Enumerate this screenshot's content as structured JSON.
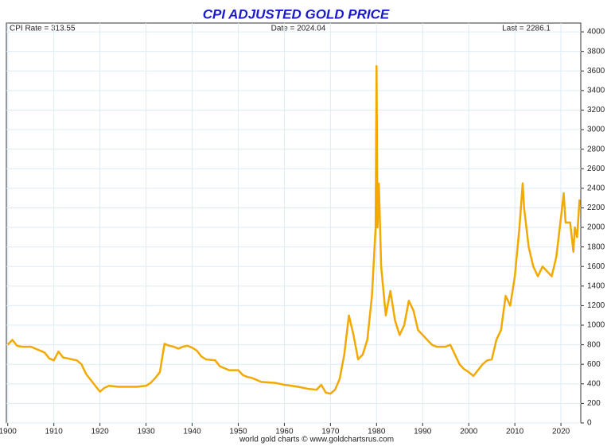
{
  "chart_data": {
    "type": "line",
    "title": "CPI ADJUSTED GOLD PRICE",
    "annotations": [
      "CPI Rate = 313.55",
      "Date = 2024.04",
      "Last = 2286.1"
    ],
    "footer": "world gold charts © www.goldchartsrus.com",
    "grid": true,
    "xlim": [
      1899.7,
      2024.3
    ],
    "xticks": [
      1900,
      1910,
      1920,
      1930,
      1940,
      1950,
      1960,
      1970,
      1980,
      1990,
      2000,
      2010,
      2020
    ],
    "ylim": [
      0,
      4090
    ],
    "yticks": [
      0,
      200,
      400,
      600,
      800,
      1000,
      1200,
      1400,
      1600,
      1800,
      2000,
      2200,
      2400,
      2600,
      2800,
      3000,
      3200,
      3400,
      3600,
      3800,
      4000
    ],
    "series": [
      {
        "name": "CPI adjusted gold price",
        "color": "#f2a900",
        "x": [
          1900,
          1901,
          1902,
          1903,
          1905,
          1907,
          1908,
          1909,
          1910,
          1911,
          1912,
          1913,
          1915,
          1916,
          1917,
          1918,
          1919,
          1920,
          1921,
          1922,
          1924,
          1926,
          1928,
          1930,
          1931,
          1932,
          1933,
          1934,
          1935,
          1936,
          1937,
          1938,
          1939,
          1940,
          1941,
          1942,
          1943,
          1945,
          1946,
          1947,
          1948,
          1950,
          1951,
          1952,
          1953,
          1955,
          1958,
          1960,
          1963,
          1965,
          1967,
          1968,
          1969,
          1970,
          1971,
          1972,
          1973,
          1974,
          1975,
          1976,
          1977,
          1978,
          1979,
          1979.8,
          1980,
          1980.2,
          1980.5,
          1981,
          1982,
          1983,
          1984,
          1985,
          1986,
          1987,
          1988,
          1989,
          1990,
          1991,
          1992,
          1993,
          1995,
          1996,
          1997,
          1998,
          1999,
          2000,
          2001,
          2002,
          2003,
          2004,
          2005,
          2006,
          2007,
          2008,
          2009,
          2010,
          2011,
          2011.7,
          2012,
          2013,
          2014,
          2015,
          2016,
          2017,
          2018,
          2019,
          2020,
          2020.6,
          2021,
          2022,
          2022.7,
          2023,
          2023.5,
          2024.04
        ],
        "values": [
          800,
          850,
          790,
          780,
          780,
          740,
          720,
          660,
          640,
          730,
          670,
          660,
          640,
          600,
          500,
          440,
          380,
          320,
          360,
          380,
          370,
          370,
          370,
          380,
          410,
          460,
          520,
          810,
          790,
          780,
          760,
          780,
          790,
          770,
          740,
          680,
          650,
          640,
          580,
          560,
          540,
          540,
          490,
          470,
          460,
          420,
          410,
          390,
          370,
          350,
          340,
          390,
          310,
          300,
          340,
          450,
          700,
          1100,
          900,
          650,
          700,
          850,
          1300,
          2000,
          3650,
          2000,
          2450,
          1600,
          1100,
          1350,
          1050,
          900,
          1000,
          1250,
          1150,
          950,
          900,
          850,
          800,
          780,
          780,
          800,
          700,
          600,
          550,
          520,
          480,
          540,
          600,
          640,
          650,
          850,
          950,
          1300,
          1200,
          1500,
          2000,
          2450,
          2200,
          1800,
          1600,
          1500,
          1600,
          1550,
          1500,
          1700,
          2100,
          2350,
          2050,
          2050,
          1750,
          2000,
          1900,
          2286.1
        ]
      }
    ]
  }
}
